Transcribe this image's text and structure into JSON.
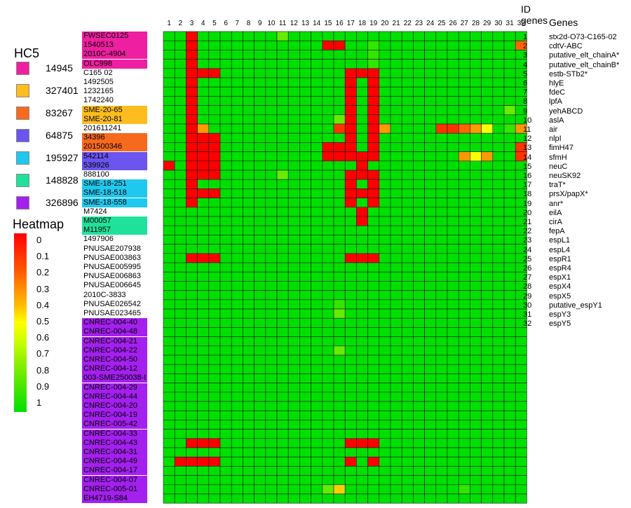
{
  "hc5_legend": {
    "title": "HC5",
    "items": [
      {
        "label": "14945",
        "color": "#ee1fa0"
      },
      {
        "label": "327401",
        "color": "#fdbd1e"
      },
      {
        "label": "83267",
        "color": "#f76a1e"
      },
      {
        "label": "64875",
        "color": "#6b55ee"
      },
      {
        "label": "195927",
        "color": "#20c8ee"
      },
      {
        "label": "148828",
        "color": "#1fe19b"
      },
      {
        "label": "326896",
        "color": "#a320ee"
      }
    ]
  },
  "heatmap_legend": {
    "title": "Heatmap",
    "labels": [
      "0",
      "0.1",
      "0.2",
      "0.3",
      "0.4",
      "0.5",
      "0.6",
      "0.7",
      "0.8",
      "0.9",
      "1"
    ],
    "colors": [
      "#ff0000",
      "#ff2a00",
      "#ff5500",
      "#ff8800",
      "#ffbb00",
      "#ffff00",
      "#ccff00",
      "#99f200",
      "#66ea00",
      "#33e400",
      "#00e000"
    ]
  },
  "header": {
    "id_genes": "ID\ngenes",
    "genes": "Genes"
  },
  "genes": [
    {
      "id": "1",
      "name": "stx2d-O73-C165-02"
    },
    {
      "id": "2",
      "name": "cdtV-ABC"
    },
    {
      "id": "3",
      "name": "putative_elt_chainA*"
    },
    {
      "id": "4",
      "name": "putative_elt_chainB*"
    },
    {
      "id": "5",
      "name": "estb-STb2*"
    },
    {
      "id": "6",
      "name": "hlyE"
    },
    {
      "id": "7",
      "name": "fdeC"
    },
    {
      "id": "8",
      "name": "lpfA"
    },
    {
      "id": "9",
      "name": "yehABCD"
    },
    {
      "id": "10",
      "name": "aslA"
    },
    {
      "id": "11",
      "name": "air"
    },
    {
      "id": "12",
      "name": "nlpI"
    },
    {
      "id": "13",
      "name": "fimH47"
    },
    {
      "id": "14",
      "name": "sfmH"
    },
    {
      "id": "15",
      "name": "neuC"
    },
    {
      "id": "16",
      "name": "neuSK92"
    },
    {
      "id": "17",
      "name": "traT*"
    },
    {
      "id": "18",
      "name": "prsX/papX*"
    },
    {
      "id": "19",
      "name": "anr*"
    },
    {
      "id": "20",
      "name": "eilA"
    },
    {
      "id": "21",
      "name": "cirA"
    },
    {
      "id": "22",
      "name": "fepA"
    },
    {
      "id": "23",
      "name": "espL1"
    },
    {
      "id": "24",
      "name": "espL4"
    },
    {
      "id": "25",
      "name": "espR1"
    },
    {
      "id": "26",
      "name": "espR4"
    },
    {
      "id": "27",
      "name": "espX1"
    },
    {
      "id": "28",
      "name": "espX4"
    },
    {
      "id": "29",
      "name": "espX5"
    },
    {
      "id": "30",
      "name": "putative_espY1"
    },
    {
      "id": "31",
      "name": "espY3"
    },
    {
      "id": "32",
      "name": "espY5"
    }
  ],
  "chart_data": {
    "type": "heatmap",
    "columns": [
      "1",
      "2",
      "3",
      "4",
      "5",
      "6",
      "7",
      "8",
      "9",
      "10",
      "11",
      "12",
      "13",
      "14",
      "15",
      "16",
      "17",
      "18",
      "19",
      "20",
      "21",
      "22",
      "23",
      "24",
      "25",
      "26",
      "27",
      "28",
      "29",
      "30",
      "31",
      "32"
    ],
    "default_value": 1,
    "color_scale": {
      "min": 0,
      "max": 1,
      "low_color": "#ff0000",
      "high_color": "#00e000"
    },
    "rows": [
      {
        "label": "FWSEC0125",
        "group": "14945"
      },
      {
        "label": "1540513",
        "group": "14945"
      },
      {
        "label": "2010C-4904",
        "group": "14945"
      },
      {
        "label": "OLC998",
        "group": "14945"
      },
      {
        "label": "C165 02",
        "group": ""
      },
      {
        "label": "1492505",
        "group": ""
      },
      {
        "label": "1232165",
        "group": ""
      },
      {
        "label": "1742240",
        "group": ""
      },
      {
        "label": "SME-20-65",
        "group": "327401"
      },
      {
        "label": "SME-20-81",
        "group": "327401"
      },
      {
        "label": "201611241",
        "group": ""
      },
      {
        "label": "34396",
        "group": "83267"
      },
      {
        "label": "201500346",
        "group": "83267"
      },
      {
        "label": "542114",
        "group": "64875"
      },
      {
        "label": "539926",
        "group": "64875"
      },
      {
        "label": "888100",
        "group": ""
      },
      {
        "label": "SME-18-251",
        "group": "195927"
      },
      {
        "label": "SME-18-518",
        "group": "195927"
      },
      {
        "label": "SME-18-558",
        "group": "195927"
      },
      {
        "label": "M7424",
        "group": ""
      },
      {
        "label": "M00057",
        "group": "148828"
      },
      {
        "label": "M11957",
        "group": "148828"
      },
      {
        "label": "1497906",
        "group": ""
      },
      {
        "label": "PNUSAE207938",
        "group": ""
      },
      {
        "label": "PNUSAE003863",
        "group": ""
      },
      {
        "label": "PNUSAE005995",
        "group": ""
      },
      {
        "label": "PNUSAE006863",
        "group": ""
      },
      {
        "label": "PNUSAE006645",
        "group": ""
      },
      {
        "label": "2010C-3833",
        "group": ""
      },
      {
        "label": "PNUSAE026542",
        "group": ""
      },
      {
        "label": "PNUSAE023465",
        "group": ""
      },
      {
        "label": "CNREC-004-40",
        "group": "326896"
      },
      {
        "label": "CNREC-004-48",
        "group": "326896"
      },
      {
        "label": "CNREC-004-21",
        "group": "326896"
      },
      {
        "label": "CNREC-004-22",
        "group": "326896"
      },
      {
        "label": "CNREC-004-50",
        "group": "326896"
      },
      {
        "label": "CNREC-004-12",
        "group": "326896"
      },
      {
        "label": "003-SME250038-I",
        "group": "326896"
      },
      {
        "label": "CNREC-004-29",
        "group": "326896"
      },
      {
        "label": "CNREC-004-44",
        "group": "326896"
      },
      {
        "label": "CNREC-004-20",
        "group": "326896"
      },
      {
        "label": "CNREC-004-19",
        "group": "326896"
      },
      {
        "label": "CNREC-005-42",
        "group": "326896"
      },
      {
        "label": "CNREC-004-33",
        "group": "326896"
      },
      {
        "label": "CNREC-004-43",
        "group": "326896"
      },
      {
        "label": "CNREC-004-31",
        "group": "326896"
      },
      {
        "label": "CNREC-004-49",
        "group": "326896"
      },
      {
        "label": "CNREC-004-17",
        "group": "326896"
      },
      {
        "label": "CNREC-004-07",
        "group": "326896"
      },
      {
        "label": "CNREC-005-01",
        "group": "326896"
      },
      {
        "label": "EH4719-S84",
        "group": "326896"
      }
    ],
    "cells": [
      [
        0,
        10,
        0.8
      ],
      [
        0,
        2,
        0
      ],
      [
        1,
        2,
        0
      ],
      [
        1,
        14,
        0
      ],
      [
        1,
        15,
        0
      ],
      [
        1,
        18,
        0.9
      ],
      [
        1,
        31,
        0.2
      ],
      [
        2,
        2,
        0
      ],
      [
        2,
        18,
        0.9
      ],
      [
        3,
        2,
        0
      ],
      [
        3,
        18,
        0.9
      ],
      [
        4,
        2,
        0
      ],
      [
        4,
        3,
        0
      ],
      [
        4,
        4,
        0
      ],
      [
        4,
        16,
        0
      ],
      [
        4,
        17,
        0
      ],
      [
        4,
        18,
        0
      ],
      [
        5,
        2,
        0
      ],
      [
        5,
        16,
        0
      ],
      [
        5,
        18,
        0
      ],
      [
        6,
        2,
        0
      ],
      [
        6,
        16,
        0
      ],
      [
        6,
        18,
        0
      ],
      [
        7,
        2,
        0
      ],
      [
        7,
        16,
        0
      ],
      [
        7,
        18,
        0
      ],
      [
        8,
        2,
        0
      ],
      [
        8,
        16,
        0
      ],
      [
        8,
        18,
        0
      ],
      [
        8,
        30,
        0.8
      ],
      [
        9,
        2,
        0
      ],
      [
        9,
        15,
        0.8
      ],
      [
        9,
        16,
        0
      ],
      [
        9,
        18,
        0
      ],
      [
        10,
        2,
        0
      ],
      [
        10,
        3,
        0.3
      ],
      [
        10,
        15,
        0.1
      ],
      [
        10,
        16,
        0
      ],
      [
        10,
        18,
        0
      ],
      [
        10,
        19,
        0.3
      ],
      [
        10,
        24,
        0.1
      ],
      [
        10,
        25,
        0.1
      ],
      [
        10,
        26,
        0.2
      ],
      [
        10,
        27,
        0.3
      ],
      [
        10,
        28,
        0.5
      ],
      [
        10,
        30,
        0.9
      ],
      [
        10,
        31,
        0.3
      ],
      [
        11,
        2,
        0
      ],
      [
        11,
        3,
        0
      ],
      [
        11,
        4,
        0
      ],
      [
        11,
        16,
        0
      ],
      [
        11,
        18,
        0
      ],
      [
        12,
        2,
        0
      ],
      [
        12,
        3,
        0
      ],
      [
        12,
        4,
        0
      ],
      [
        12,
        14,
        0
      ],
      [
        12,
        15,
        0
      ],
      [
        12,
        16,
        0
      ],
      [
        12,
        18,
        0
      ],
      [
        12,
        31,
        0.1
      ],
      [
        13,
        2,
        0
      ],
      [
        13,
        3,
        0
      ],
      [
        13,
        4,
        0
      ],
      [
        13,
        14,
        0
      ],
      [
        13,
        15,
        0
      ],
      [
        13,
        16,
        0
      ],
      [
        13,
        17,
        0
      ],
      [
        13,
        18,
        0
      ],
      [
        13,
        26,
        0.3
      ],
      [
        13,
        27,
        0.5
      ],
      [
        13,
        28,
        0.3
      ],
      [
        13,
        31,
        0.1
      ],
      [
        14,
        0,
        0
      ],
      [
        14,
        2,
        0
      ],
      [
        14,
        3,
        0
      ],
      [
        14,
        4,
        0
      ],
      [
        14,
        17,
        0
      ],
      [
        15,
        2,
        0
      ],
      [
        15,
        3,
        0
      ],
      [
        15,
        4,
        0
      ],
      [
        15,
        10,
        0.8
      ],
      [
        15,
        16,
        0
      ],
      [
        15,
        17,
        0
      ],
      [
        15,
        18,
        0
      ],
      [
        16,
        2,
        0
      ],
      [
        16,
        16,
        0
      ],
      [
        16,
        18,
        0
      ],
      [
        17,
        2,
        0
      ],
      [
        17,
        3,
        0
      ],
      [
        17,
        4,
        0
      ],
      [
        17,
        16,
        0
      ],
      [
        17,
        17,
        0
      ],
      [
        17,
        18,
        0
      ],
      [
        18,
        2,
        0
      ],
      [
        18,
        16,
        0
      ],
      [
        18,
        18,
        0
      ],
      [
        19,
        17,
        0
      ],
      [
        20,
        17,
        0
      ],
      [
        24,
        2,
        0
      ],
      [
        24,
        3,
        0
      ],
      [
        24,
        4,
        0
      ],
      [
        24,
        16,
        0
      ],
      [
        24,
        17,
        0
      ],
      [
        24,
        18,
        0
      ],
      [
        29,
        15,
        0.9
      ],
      [
        30,
        15,
        0.8
      ],
      [
        34,
        15,
        0.8
      ],
      [
        44,
        2,
        0
      ],
      [
        44,
        3,
        0
      ],
      [
        44,
        4,
        0
      ],
      [
        44,
        16,
        0
      ],
      [
        44,
        17,
        0
      ],
      [
        44,
        18,
        0
      ],
      [
        46,
        1,
        0
      ],
      [
        46,
        2,
        0
      ],
      [
        46,
        3,
        0
      ],
      [
        46,
        4,
        0
      ],
      [
        46,
        16,
        0
      ],
      [
        46,
        18,
        0
      ],
      [
        49,
        14,
        0.8
      ],
      [
        49,
        15,
        0.4
      ],
      [
        49,
        26,
        0.9
      ]
    ]
  }
}
